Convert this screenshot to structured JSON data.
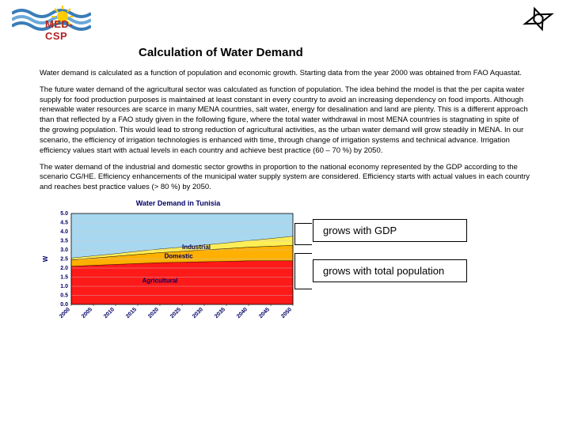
{
  "header": {
    "logo_text": "MED-CSP"
  },
  "title": "Calculation of Water Demand",
  "paragraphs": {
    "p1": "Water demand is calculated as a function of population and economic growth. Starting data from the year 2000 was obtained from FAO Aquastat.",
    "p2": "The future water demand of the agricultural sector was calculated as function of population. The idea behind the model is that the per capita water supply for food production purposes is maintained at least constant in every country to avoid an increasing dependency on food imports. Although renewable water resources are scarce in many MENA countries, salt water, energy for desalination and land are plenty. This is a different approach than that reflected by a FAO study given in the following figure, where the total water withdrawal in most MENA countries is stagnating in spite of the growing population. This would lead to strong reduction of agricultural activities, as the urban water demand will grow steadily in MENA. In our scenario, the efficiency of irrigation technologies is enhanced with time, through change of irrigation systems and technical advance. Irrigation efficiency values start with actual levels in each country and achieve best practice (60 – 70 %) by 2050.",
    "p3": "The water demand of the industrial and domestic sector growths in proportion to the national economy represented by the GDP according to the scenario CG/HE. Efficiency enhancements of the municipal water supply system are considered. Efficiency starts with actual values in each country and reaches best practice values (> 80 %) by 2050."
  },
  "chart": {
    "title": "Water Demand in Tunisia",
    "type": "area",
    "x_categories": [
      "2000",
      "2005",
      "2010",
      "2015",
      "2020",
      "2025",
      "2030",
      "2035",
      "2040",
      "2045",
      "2050"
    ],
    "y_ticks": [
      0.0,
      0.5,
      1.0,
      1.5,
      2.0,
      2.5,
      3.0,
      3.5,
      4.0,
      4.5,
      5.0
    ],
    "ylim": [
      0,
      5.0
    ],
    "series": [
      {
        "name": "Agricultural",
        "color": "#ff1a1a",
        "values": [
          2.1,
          2.15,
          2.2,
          2.25,
          2.3,
          2.32,
          2.35,
          2.37,
          2.4,
          2.4,
          2.4
        ]
      },
      {
        "name": "Domestic",
        "color": "#ffb000",
        "values": [
          0.35,
          0.4,
          0.45,
          0.5,
          0.55,
          0.6,
          0.65,
          0.7,
          0.75,
          0.8,
          0.85
        ]
      },
      {
        "name": "Industrial",
        "color": "#ffee55",
        "values": [
          0.1,
          0.12,
          0.14,
          0.17,
          0.2,
          0.23,
          0.27,
          0.31,
          0.36,
          0.42,
          0.5
        ]
      }
    ],
    "series_labels": {
      "agricultural": "Agricultural",
      "domestic": "Domestic",
      "industrial": "Industrial"
    },
    "background_color": "#ffffff",
    "grid_color": "#c8c8c8",
    "top_fill": "#a8d8f0",
    "axis_color": "#000000",
    "label_fontsize": 7,
    "title_fontsize": 9
  },
  "annotations": {
    "a1": "grows with GDP",
    "a2": "grows with total population"
  },
  "colors": {
    "text": "#000000",
    "title": "#000066",
    "logo_red": "#b22222",
    "sun_yellow": "#ffcc00",
    "wave_blue": "#3a7db8",
    "wave_white": "#ffffff"
  }
}
